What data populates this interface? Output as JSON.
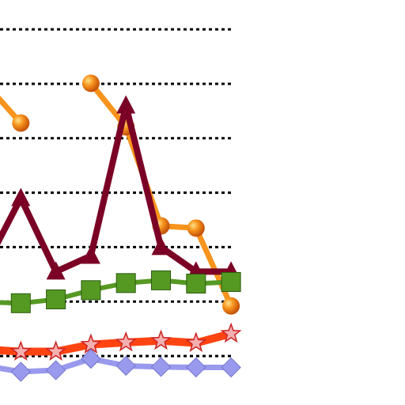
{
  "chart_data": {
    "type": "line",
    "categories": [
      null,
      null,
      null,
      null,
      null,
      null,
      null,
      null
    ],
    "ylim": [
      0.1,
      7.5
    ],
    "yticks": [
      1,
      2,
      3,
      4,
      5,
      6,
      7
    ],
    "grid": true,
    "series": [
      {
        "color": "#f7941d",
        "marker": "circle",
        "values": [
          6.0,
          5.28,
          null,
          6.01,
          5.21,
          3.39,
          3.35,
          1.92
        ]
      },
      {
        "color": "#7b0025",
        "marker": "triangle",
        "values": [
          2.66,
          3.9,
          2.55,
          2.84,
          5.6,
          3.0,
          2.55,
          2.55
        ]
      },
      {
        "color": "#559922",
        "marker": "square",
        "values": [
          1.99,
          1.97,
          2.04,
          2.21,
          2.34,
          2.39,
          2.33,
          2.36
        ]
      },
      {
        "color": "#ff4411",
        "marker": "star",
        "values": [
          1.12,
          1.08,
          1.08,
          1.21,
          1.25,
          1.28,
          1.24,
          1.41
        ]
      },
      {
        "color": "#9999ee",
        "marker": "diamond",
        "values": [
          0.82,
          0.71,
          0.74,
          0.95,
          0.82,
          0.8,
          0.79,
          0.79
        ]
      }
    ]
  }
}
